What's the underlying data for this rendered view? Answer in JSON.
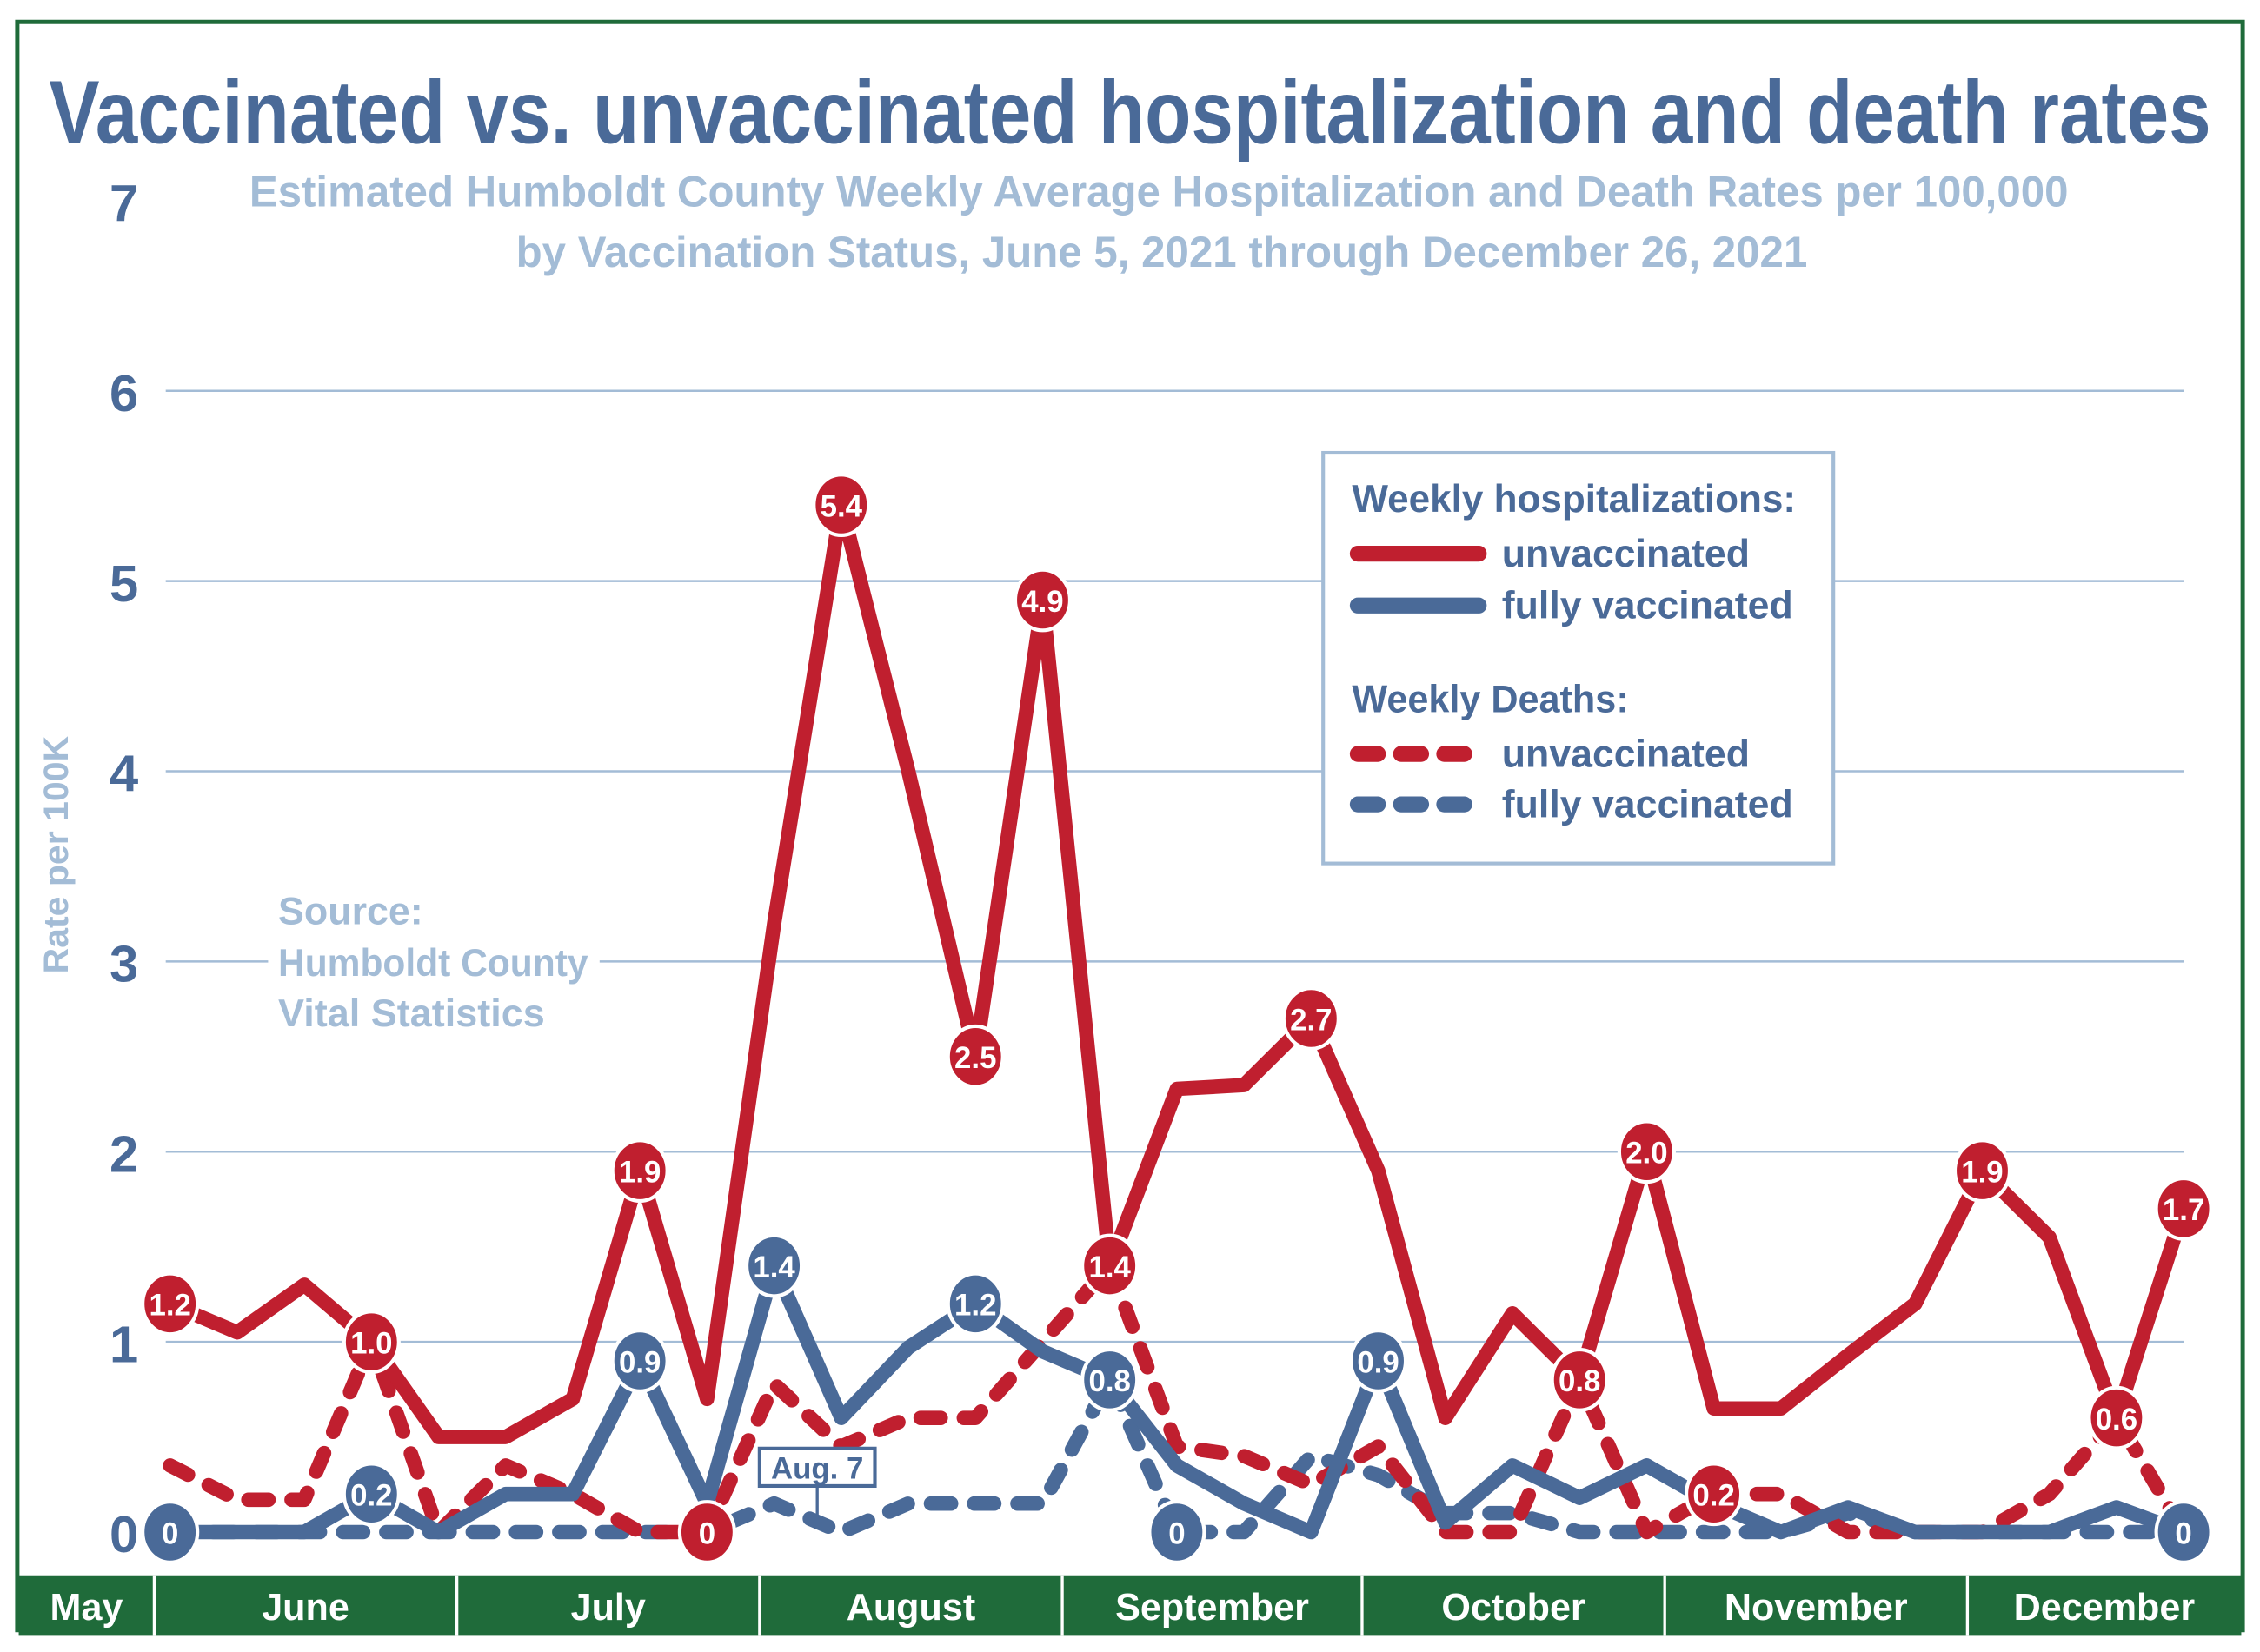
{
  "chart_data": {
    "type": "line",
    "title": "Vaccinated vs. unvaccinated hospitalization and death rates",
    "subtitle_line1": "Estimated Humboldt County Weekly Average Hospitalization and Death Rates per 100,000",
    "subtitle_line2": "by Vaccination Status,  June 5, 2021 through December 26, 2021",
    "ylabel": "Rate per 100K",
    "ylim": [
      0,
      7
    ],
    "yticks": [
      "0",
      "1",
      "2",
      "3",
      "4",
      "5",
      "6",
      "7"
    ],
    "grid": true,
    "months": [
      "May",
      "June",
      "July",
      "August",
      "September",
      "October",
      "November",
      "December"
    ],
    "source": [
      "Source:",
      "Humboldt County",
      "Vital Statistics"
    ],
    "annotation": "Aug. 7",
    "legend": {
      "placement": "top-right",
      "hosp_heading": "Weekly hospitalizations:",
      "deaths_heading": "Weekly Deaths:",
      "unvaccinated": "unvaccinated",
      "vaccinated": "fully vaccinated"
    },
    "colors": {
      "unvaccinated": "#c01f2f",
      "vaccinated": "#4a6a98",
      "title": "#4a6a98",
      "subtitle": "#a3bcd6",
      "month_bar": "#1f6b3a",
      "grid": "#a3bcd6"
    },
    "series": [
      {
        "key": "hosp_unvacc",
        "group": "hospitalizations",
        "status": "unvaccinated",
        "dashed": false,
        "values": [
          1.2,
          1.05,
          1.3,
          1.0,
          0.5,
          0.5,
          0.7,
          1.9,
          0.7,
          3.2,
          5.4,
          4.0,
          2.5,
          4.9,
          1.4,
          2.33,
          2.35,
          2.7,
          1.9,
          0.6,
          1.15,
          0.8,
          2.0,
          0.65,
          0.65,
          0.93,
          1.2,
          1.9,
          1.55,
          0.6,
          1.7
        ],
        "labels": {
          "0": "1.2",
          "3": "1.0",
          "7": "1.9",
          "10": "5.4",
          "12": "2.5",
          "13": "4.9",
          "14": "1.4",
          "17": "2.7",
          "22": "2.0",
          "27": "1.9",
          "30": "1.7"
        }
      },
      {
        "key": "hosp_vacc",
        "group": "hospitalizations",
        "status": "fully vaccinated",
        "dashed": false,
        "values": [
          0,
          0,
          0,
          0.2,
          0,
          0.2,
          0.2,
          0.9,
          0.15,
          1.4,
          0.6,
          0.97,
          1.2,
          0.95,
          0.8,
          0.35,
          0.15,
          0,
          0.9,
          0.05,
          0.35,
          0.18,
          0.35,
          0.15,
          0,
          0.13,
          0,
          0,
          0,
          0.13,
          0
        ],
        "labels": {
          "0": "0",
          "3": "0.2",
          "7": "0.9",
          "9": "1.4",
          "12": "1.2",
          "14": "0.8",
          "18": "0.9",
          "30": "0"
        }
      },
      {
        "key": "deaths_unvacc",
        "group": "deaths",
        "status": "unvaccinated",
        "dashed": true,
        "values": [
          0.35,
          0.17,
          0.17,
          1.0,
          0,
          0.35,
          0.2,
          0,
          0,
          0.78,
          0.45,
          0.6,
          0.6,
          1.0,
          1.4,
          0.45,
          0.4,
          0.25,
          0.45,
          0,
          0,
          0.8,
          0,
          0.2,
          0.2,
          0,
          0,
          0,
          0.2,
          0.6,
          0
        ],
        "labels": {
          "8": "0",
          "21": "0.8",
          "23": "0.2",
          "29": "0.6"
        }
      },
      {
        "key": "deaths_vacc",
        "group": "deaths",
        "status": "fully vaccinated",
        "dashed": true,
        "values": [
          0,
          0,
          0,
          0,
          0,
          0,
          0,
          0,
          0,
          0.15,
          0,
          0.15,
          0.15,
          0.15,
          0.8,
          0,
          0,
          0.4,
          0.3,
          0.1,
          0.1,
          0,
          0,
          0,
          0,
          0.1,
          0,
          0,
          0,
          0,
          0
        ],
        "labels": {
          "15": "0"
        }
      }
    ]
  }
}
